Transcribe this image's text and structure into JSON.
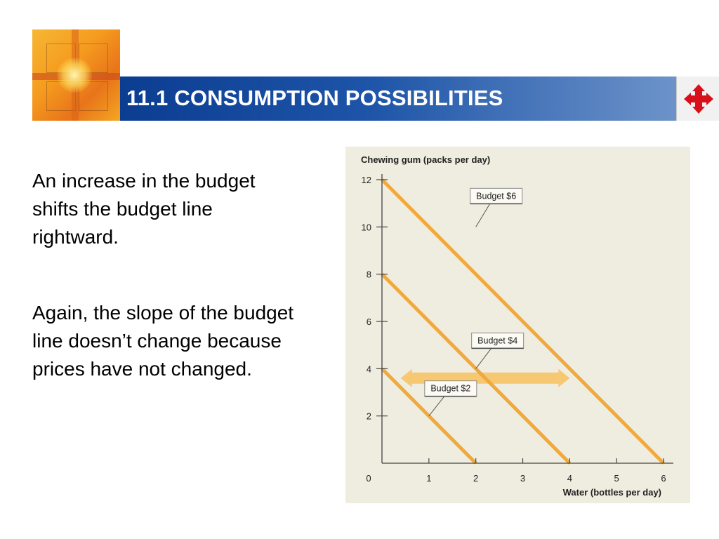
{
  "slide": {
    "title": "11.1 CONSUMPTION POSSIBILITIES",
    "paragraphs": [
      "An increase in the budget shifts the budget line rightward.",
      "Again, the slope of the budget line doesn’t change because prices have not changed."
    ],
    "colors": {
      "title_bar_start": "#0b3d91",
      "title_bar_end": "#6d93c9",
      "budget_line": "#f2a93b",
      "shift_arrow": "#f7c872",
      "chart_bg": "#efece0"
    },
    "icons": {
      "logo": "cross-window-logo",
      "nav": "move-arrows-icon"
    }
  },
  "chart_data": {
    "type": "line",
    "ylabel": "Chewing gum (packs per day)",
    "xlabel": "Water (bottles per day)",
    "xlim": [
      0,
      6
    ],
    "ylim": [
      0,
      12
    ],
    "xticks": [
      1,
      2,
      3,
      4,
      5,
      6
    ],
    "yticks": [
      2,
      4,
      6,
      8,
      10,
      12
    ],
    "origin_label": "0",
    "grid": false,
    "series": [
      {
        "name": "Budget $2",
        "x": [
          0,
          2
        ],
        "y": [
          4,
          0
        ],
        "label_anchor": [
          1.0,
          2.0
        ]
      },
      {
        "name": "Budget $4",
        "x": [
          0,
          4
        ],
        "y": [
          8,
          0
        ],
        "label_anchor": [
          2.0,
          4.0
        ]
      },
      {
        "name": "Budget $6",
        "x": [
          0,
          6
        ],
        "y": [
          12,
          0
        ],
        "label_anchor": [
          2.0,
          10.0
        ]
      }
    ],
    "annotation": {
      "type": "double-arrow",
      "from": [
        0.4,
        3.6
      ],
      "to": [
        4.0,
        3.6
      ],
      "meaning": "budget line shifts rightward"
    }
  }
}
